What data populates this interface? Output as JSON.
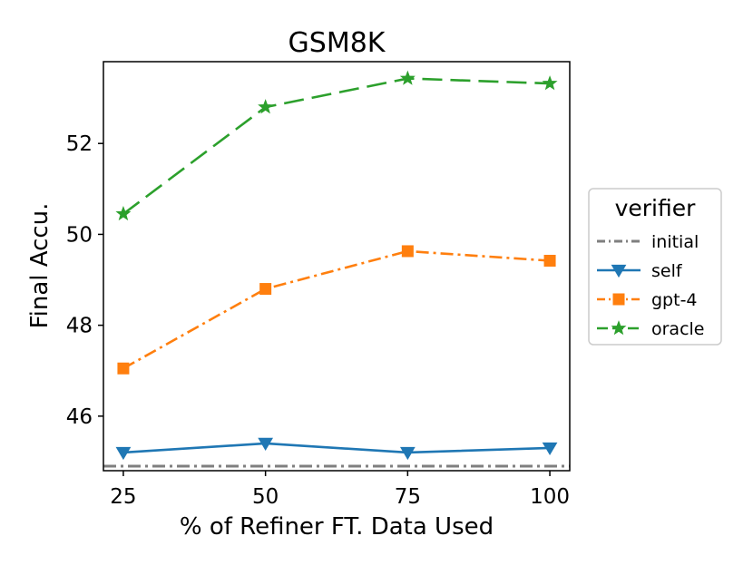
{
  "chart_data": {
    "type": "line",
    "title": "GSM8K",
    "xlabel": "% of Refiner FT. Data Used",
    "ylabel": "Final Accu.",
    "x": [
      25,
      50,
      75,
      100
    ],
    "xticks": [
      25,
      50,
      75,
      100
    ],
    "yticks": [
      46,
      48,
      50,
      52
    ],
    "xlim": [
      21.5,
      103.5
    ],
    "ylim": [
      44.8,
      53.8
    ],
    "grid": false,
    "legend": {
      "title": "verifier",
      "placement": "center-right, outside plot"
    },
    "baseline": {
      "name": "initial",
      "value": 44.9,
      "color": "#7f7f7f",
      "style": "dash-dot"
    },
    "series": [
      {
        "name": "self",
        "values": [
          45.2,
          45.4,
          45.2,
          45.3
        ],
        "color": "#1f77b4",
        "marker": "triangle-down",
        "style": "solid"
      },
      {
        "name": "gpt-4",
        "values": [
          47.05,
          48.8,
          49.63,
          49.42
        ],
        "color": "#ff7f0e",
        "marker": "square",
        "style": "dash-dot"
      },
      {
        "name": "oracle",
        "values": [
          50.45,
          52.8,
          53.43,
          53.32
        ],
        "color": "#2ca02c",
        "marker": "star",
        "style": "dashed"
      }
    ]
  }
}
